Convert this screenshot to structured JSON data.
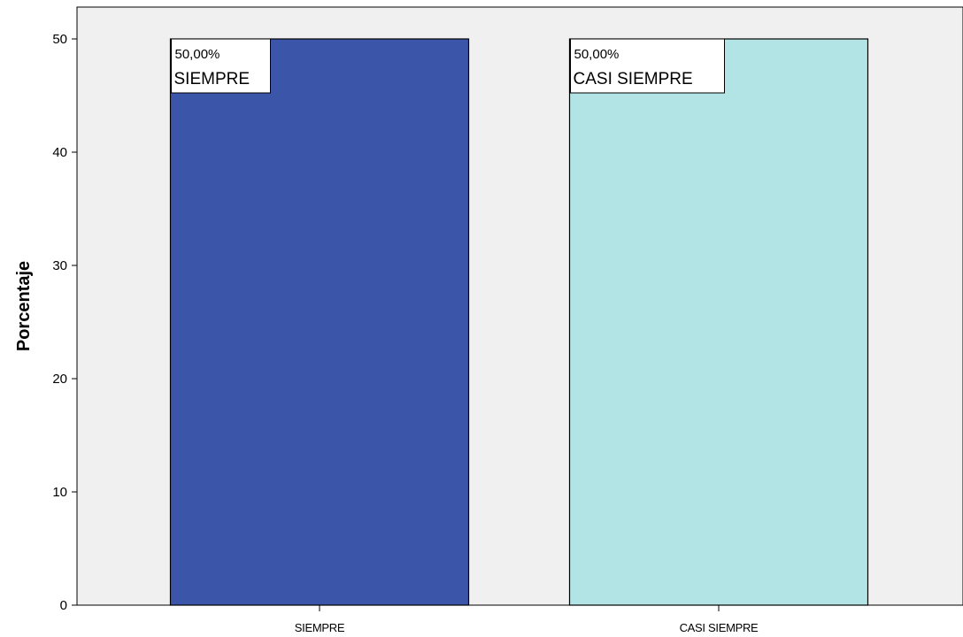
{
  "chart_data": {
    "type": "bar",
    "categories": [
      "SIEMPRE",
      "CASI SIEMPRE"
    ],
    "values": [
      50,
      50
    ],
    "data_labels": [
      {
        "value": "50,00%",
        "category": "SIEMPRE"
      },
      {
        "value": "50,00%",
        "category": "CASI SIEMPRE"
      }
    ],
    "colors": [
      "#3b55a8",
      "#b3e4e5"
    ],
    "title": "",
    "xlabel": "",
    "ylabel": "Porcentaje",
    "ylim": [
      0,
      50
    ],
    "yticks": [
      "0",
      "10",
      "20",
      "30",
      "40",
      "50"
    ],
    "grid": false,
    "plot_background": "#f0f0f0"
  }
}
